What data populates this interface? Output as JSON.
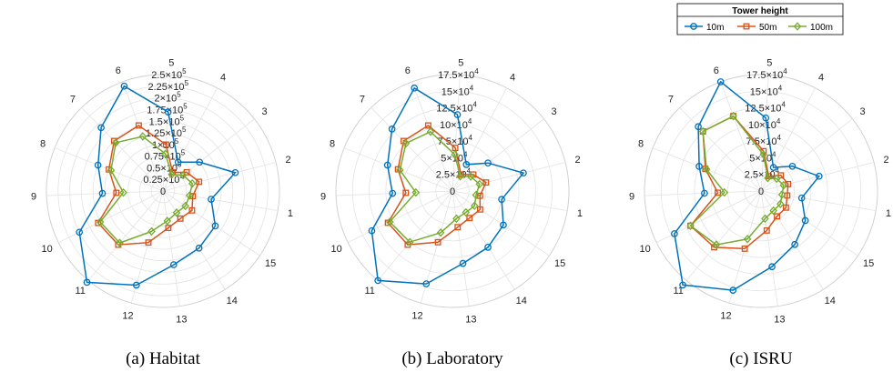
{
  "legend": {
    "title": "Tower height",
    "placement": "top-right",
    "entries": [
      "10m",
      "50m",
      "100m"
    ]
  },
  "colors": {
    "10m": "#0072BD",
    "50m": "#D95319",
    "100m": "#77AC30",
    "grid": "#e3e3e3"
  },
  "chart_data": [
    {
      "type": "polar-line",
      "caption": "(a) Habitat",
      "theta_labels": [
        "1",
        "2",
        "3",
        "4",
        "5",
        "6",
        "7",
        "8",
        "9",
        "10",
        "11",
        "12",
        "13",
        "14",
        "15"
      ],
      "r_tick_labels": [
        "0",
        "0.25×10",
        "0.5×10",
        "0.75×10",
        "1×10",
        "1.25×10",
        "1.5×10",
        "1.75×10",
        "2×10",
        "2.25×10",
        "2.5×10"
      ],
      "r_tick_values": [
        0,
        25000,
        50000,
        75000,
        100000,
        125000,
        150000,
        175000,
        200000,
        225000,
        250000
      ],
      "r_tick_exponent": "5",
      "rlim": [
        0,
        250000
      ],
      "grid": true,
      "series": [
        {
          "name": "10m",
          "marker": "circle",
          "values": [
            105000,
            160000,
            100000,
            70000,
            170000,
            240000,
            190000,
            150000,
            130000,
            200000,
            255000,
            210000,
            160000,
            145000,
            135000
          ]
        },
        {
          "name": "50m",
          "marker": "square",
          "values": [
            65000,
            80000,
            65000,
            45000,
            100000,
            150000,
            150000,
            125000,
            100000,
            155000,
            150000,
            115000,
            80000,
            70000,
            75000
          ]
        },
        {
          "name": "100m",
          "marker": "diamond",
          "values": [
            58000,
            65000,
            55000,
            40000,
            80000,
            125000,
            145000,
            120000,
            85000,
            150000,
            145000,
            90000,
            65000,
            55000,
            58000
          ]
        }
      ]
    },
    {
      "type": "polar-line",
      "caption": "(b) Laboratory",
      "theta_labels": [
        "1",
        "2",
        "3",
        "4",
        "5",
        "6",
        "7",
        "8",
        "9",
        "10",
        "11",
        "12",
        "13",
        "14",
        "15"
      ],
      "r_tick_labels": [
        "0",
        "2.5×10",
        "5×10",
        "7.5×10",
        "10×10",
        "12.5×10",
        "15×10",
        "17.5×10"
      ],
      "r_tick_values": [
        0,
        25000,
        50000,
        75000,
        100000,
        125000,
        150000,
        175000
      ],
      "r_tick_exponent": "4",
      "rlim": [
        0,
        175000
      ],
      "grid": true,
      "series": [
        {
          "name": "10m",
          "marker": "circle",
          "values": [
            75000,
            110000,
            68000,
            45000,
            115000,
            165000,
            130000,
            105000,
            90000,
            135000,
            175000,
            145000,
            110000,
            100000,
            92000
          ]
        },
        {
          "name": "50m",
          "marker": "square",
          "values": [
            42000,
            52000,
            40000,
            28000,
            65000,
            105000,
            105000,
            88000,
            70000,
            108000,
            105000,
            80000,
            55000,
            48000,
            50000
          ]
        },
        {
          "name": "100m",
          "marker": "diamond",
          "values": [
            36000,
            42000,
            35000,
            25000,
            55000,
            95000,
            100000,
            85000,
            55000,
            105000,
            100000,
            65000,
            42000,
            38000,
            40000
          ]
        }
      ]
    },
    {
      "type": "polar-line",
      "caption": "(c) ISRU",
      "theta_labels": [
        "1",
        "2",
        "3",
        "4",
        "5",
        "6",
        "7",
        "8",
        "9",
        "10",
        "11",
        "12",
        "13",
        "14",
        "15"
      ],
      "r_tick_labels": [
        "0",
        "2.5×10",
        "5×10",
        "7.5×10",
        "10×10",
        "12.5×10",
        "15×10",
        "17.5×10"
      ],
      "r_tick_values": [
        0,
        25000,
        50000,
        75000,
        100000,
        125000,
        150000,
        175000
      ],
      "r_tick_exponent": "4",
      "rlim": [
        0,
        175000
      ],
      "grid": true,
      "series": [
        {
          "name": "10m",
          "marker": "circle",
          "values": [
            62000,
            90000,
            60000,
            40000,
            110000,
            175000,
            135000,
            100000,
            85000,
            145000,
            185000,
            155000,
            115000,
            95000,
            80000
          ]
        },
        {
          "name": "50m",
          "marker": "square",
          "values": [
            40000,
            42000,
            38000,
            25000,
            60000,
            120000,
            125000,
            90000,
            65000,
            118000,
            110000,
            90000,
            60000,
            45000,
            45000
          ]
        },
        {
          "name": "100m",
          "marker": "diamond",
          "values": [
            32000,
            35000,
            30000,
            22000,
            55000,
            120000,
            125000,
            88000,
            55000,
            118000,
            105000,
            75000,
            42000,
            35000,
            35000
          ]
        }
      ]
    }
  ]
}
